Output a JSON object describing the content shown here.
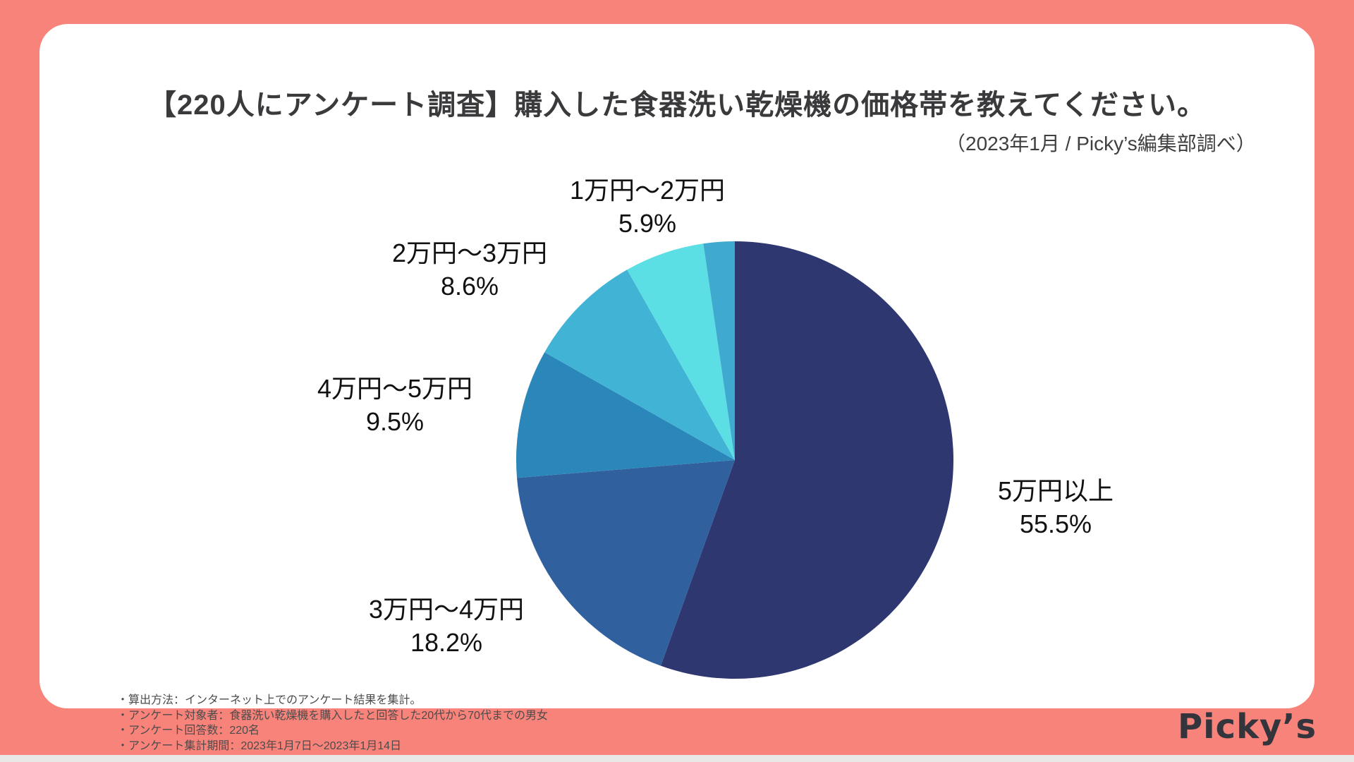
{
  "title": "【220人にアンケート調査】購入した食器洗い乾燥機の価格帯を教えてください。",
  "subtitle": "（2023年1月 / Picky’s編集部調べ）",
  "logo_text": "Picky’s",
  "footnotes": {
    "line1": "・算出方法：インターネット上でのアンケート結果を集計。",
    "line2": "・アンケート対象者：食器洗い乾燥機を購入したと回答した20代から70代までの男女",
    "line3": "・アンケート回答数：220名",
    "line4": "・アンケート集計期間：2023年1月7日〜2023年1月14日"
  },
  "colors": {
    "frame": "#f8837a",
    "card": "#ffffff",
    "title_text": "#3a3a3c",
    "label_text": "#111111"
  },
  "chart_data": {
    "type": "pie",
    "title": "【220人にアンケート調査】購入した食器洗い乾燥機の価格帯を教えてください。",
    "source": "（2023年1月 / Picky’s編集部調べ）",
    "total_respondents": 220,
    "start_angle_deg": 0,
    "direction": "clockwise",
    "slices": [
      {
        "label": "5万円以上",
        "value": 55.5,
        "pct_label": "55.5%",
        "color": "#2e3770"
      },
      {
        "label": "3万円〜4万円",
        "value": 18.2,
        "pct_label": "18.2%",
        "color": "#30609d"
      },
      {
        "label": "4万円〜5万円",
        "value": 9.5,
        "pct_label": "9.5%",
        "color": "#2b86ba"
      },
      {
        "label": "2万円〜3万円",
        "value": 8.6,
        "pct_label": "8.6%",
        "color": "#41b4d5"
      },
      {
        "label": "1万円〜2万円",
        "value": 5.9,
        "pct_label": "5.9%",
        "color": "#5cdfe4"
      },
      {
        "label": "",
        "value": 2.3,
        "pct_label": "",
        "color": "#3fa9d0"
      }
    ]
  }
}
